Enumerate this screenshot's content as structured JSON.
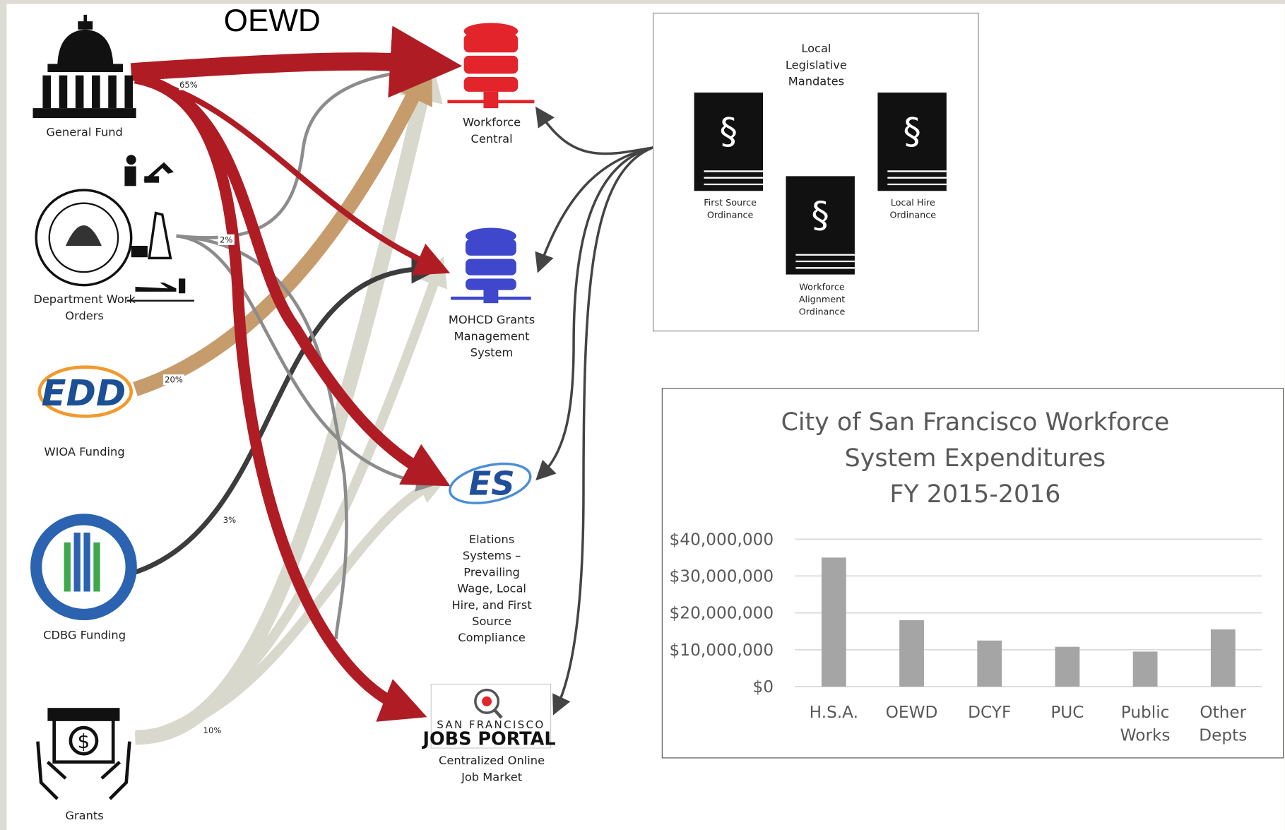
{
  "header": {
    "title": "OEWD"
  },
  "sources": [
    {
      "label": "General Fund"
    },
    {
      "label": "Department Work Orders"
    },
    {
      "label": "WIOA Funding",
      "logo_text": "EDD"
    },
    {
      "label": "CDBG Funding"
    },
    {
      "label": "Grants"
    }
  ],
  "flows": [
    {
      "label": "65%"
    },
    {
      "label": "2%"
    },
    {
      "label": "20%"
    },
    {
      "label": "3%"
    },
    {
      "label": "10%"
    }
  ],
  "systems": [
    {
      "label": "Workforce Central"
    },
    {
      "label": "MOHCD Grants Management System"
    },
    {
      "label": "Elations Systems – Prevailing Wage, Local Hire, and First Source Compliance",
      "logo_text": "ES"
    },
    {
      "label": "Centralized Online Job Market",
      "logo_text": [
        "SAN FRANCISCO",
        "JOBS PORTAL"
      ]
    }
  ],
  "mandates": {
    "title": "Local Legislative Mandates",
    "symbol": "§",
    "items": [
      "First Source Ordinance",
      "Local Hire Ordinance",
      "Workforce Alignment Ordinance"
    ]
  },
  "chart_data": {
    "type": "bar",
    "title": "City of San Francisco Workforce System Expenditures",
    "subtitle": "FY 2015-2016",
    "categories": [
      "H.S.A.",
      "OEWD",
      "DCYF",
      "PUC",
      "Public Works",
      "Other Depts"
    ],
    "values": [
      35000000,
      18000000,
      12500000,
      10800000,
      9500000,
      15500000
    ],
    "color": "#a5a5a5",
    "ylim": [
      0,
      40000000
    ],
    "yticks": [
      {
        "value": 0,
        "label": "$0"
      },
      {
        "value": 10000000,
        "label": "$10,000,000"
      },
      {
        "value": 20000000,
        "label": "$20,000,000"
      },
      {
        "value": 30000000,
        "label": "$30,000,000"
      },
      {
        "value": 40000000,
        "label": "$40,000,000"
      }
    ],
    "grid": true
  }
}
